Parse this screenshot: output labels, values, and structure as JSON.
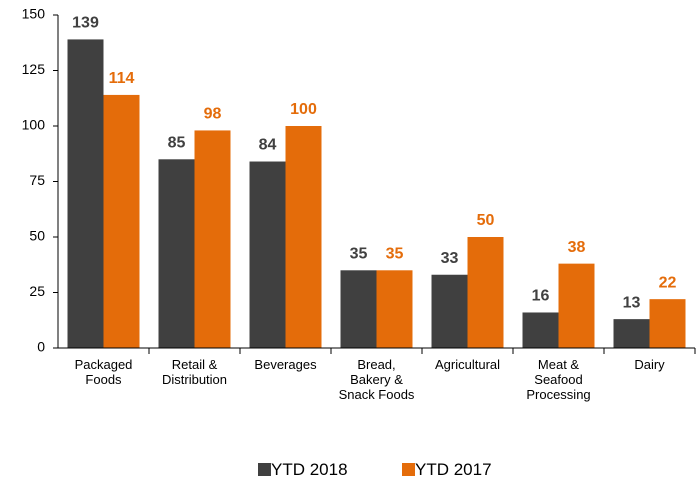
{
  "chart_data": {
    "type": "bar",
    "categories": [
      "Packaged\nFoods",
      "Retail &\nDistribution",
      "Beverages",
      "Bread,\nBakery &\nSnack Foods",
      "Agricultural",
      "Meat &\nSeafood\nProcessing",
      "Dairy"
    ],
    "series": [
      {
        "name": "YTD 2018",
        "color": "#404040",
        "values": [
          139,
          85,
          84,
          35,
          33,
          16,
          13
        ]
      },
      {
        "name": "YTD 2017",
        "color": "#e46c0a",
        "values": [
          114,
          98,
          100,
          35,
          50,
          38,
          22
        ]
      }
    ],
    "ylim": [
      0,
      150
    ],
    "yticks": [
      0,
      25,
      50,
      75,
      100,
      125,
      150
    ],
    "legend": "bottom"
  }
}
